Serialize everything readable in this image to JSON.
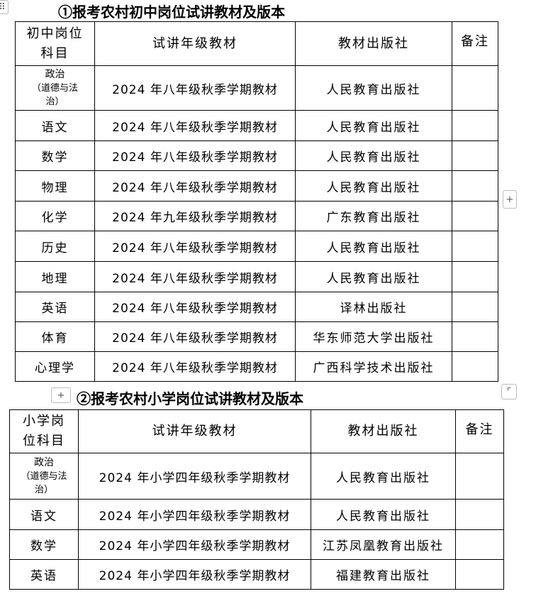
{
  "table1": {
    "title": "①报考农村初中岗位试讲教材及版本",
    "headers": [
      "初中岗位科目",
      "试讲年级教材",
      "教材出版社",
      "备注"
    ],
    "rows": [
      {
        "subject": "政治",
        "subject_note": "（道德与法治）",
        "textbook": "2024 年八年级秋季学期教材",
        "publisher": "人民教育出版社",
        "remark": ""
      },
      {
        "subject": "语文",
        "textbook": "2024 年八年级秋季学期教材",
        "publisher": "人民教育出版社",
        "remark": ""
      },
      {
        "subject": "数学",
        "textbook": "2024 年八年级秋季学期教材",
        "publisher": "人民教育出版社",
        "remark": ""
      },
      {
        "subject": "物理",
        "textbook": "2024 年八年级秋季学期教材",
        "publisher": "人民教育出版社",
        "remark": ""
      },
      {
        "subject": "化学",
        "textbook": "2024 年九年级秋季学期教材",
        "publisher": "广东教育出版社",
        "remark": ""
      },
      {
        "subject": "历史",
        "textbook": "2024 年八年级秋季学期教材",
        "publisher": "人民教育出版社",
        "remark": ""
      },
      {
        "subject": "地理",
        "textbook": "2024 年八年级秋季学期教材",
        "publisher": "人民教育出版社",
        "remark": ""
      },
      {
        "subject": "英语",
        "textbook": "2024 年八年级秋季学期教材",
        "publisher": "译林出版社",
        "remark": ""
      },
      {
        "subject": "体育",
        "textbook": "2024 年八年级秋季学期教材",
        "publisher": "华东师范大学出版社",
        "remark": ""
      },
      {
        "subject": "心理学",
        "textbook": "2024 年八年级秋季学期教材",
        "publisher": "广西科学技术出版社",
        "remark": ""
      }
    ]
  },
  "table2": {
    "title": "②报考农村小学岗位试讲教材及版本",
    "headers": [
      "小学岗位科目",
      "试讲年级教材",
      "教材出版社",
      "备注"
    ],
    "rows": [
      {
        "subject": "政治",
        "subject_note": "（道德与法治）",
        "textbook": "2024 年小学四年级秋季学期教材",
        "publisher": "人民教育出版社",
        "remark": ""
      },
      {
        "subject": "语文",
        "textbook": "2024 年小学四年级秋季学期教材",
        "publisher": "人民教育出版社",
        "remark": ""
      },
      {
        "subject": "数学",
        "textbook": "2024 年小学四年级秋季学期教材",
        "publisher": "江苏凤凰教育出版社",
        "remark": ""
      },
      {
        "subject": "英语",
        "textbook": "2024 年小学四年级秋季学期教材",
        "publisher": "福建教育出版社",
        "remark": ""
      }
    ]
  },
  "controls": {
    "add_symbol": "+"
  }
}
